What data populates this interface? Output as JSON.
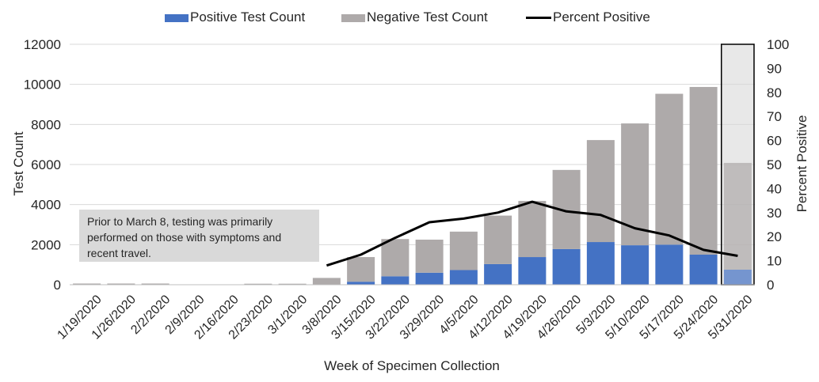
{
  "chart_data": {
    "type": "bar",
    "stacked": true,
    "title": "",
    "xlabel": "Week of Specimen Collection",
    "ylabel": "Test Count",
    "y2label": "Percent Positive",
    "ylim": [
      0,
      12000
    ],
    "y2lim": [
      0,
      100
    ],
    "yticks": [
      "0",
      "2000",
      "4000",
      "6000",
      "8000",
      "10000",
      "12000"
    ],
    "y2ticks": [
      "0",
      "10",
      "20",
      "30",
      "40",
      "50",
      "60",
      "70",
      "80",
      "90",
      "100"
    ],
    "categories": [
      "1/19/2020",
      "1/26/2020",
      "2/2/2020",
      "2/9/2020",
      "2/16/2020",
      "2/23/2020",
      "3/1/2020",
      "3/8/2020",
      "3/15/2020",
      "3/22/2020",
      "3/29/2020",
      "4/5/2020",
      "4/12/2020",
      "4/19/2020",
      "4/26/2020",
      "5/3/2020",
      "5/10/2020",
      "5/17/2020",
      "5/24/2020",
      "5/31/2020"
    ],
    "series": [
      {
        "name": "Positive Test Count",
        "color": "#4472c4",
        "values": [
          0,
          0,
          0,
          0,
          0,
          0,
          0,
          0,
          150,
          420,
          600,
          730,
          1030,
          1380,
          1780,
          2130,
          1970,
          2000,
          1500,
          750
        ]
      },
      {
        "name": "Negative Test Count",
        "color": "#aeaaaa",
        "values": [
          60,
          60,
          60,
          0,
          0,
          50,
          50,
          340,
          1230,
          1860,
          1650,
          1920,
          2420,
          2800,
          3950,
          5090,
          6080,
          7530,
          8370,
          5330
        ]
      },
      {
        "name": "Percent Positive",
        "color": "#000000",
        "axis": "right",
        "values": [
          null,
          null,
          null,
          null,
          null,
          null,
          null,
          8,
          12.5,
          19.5,
          26,
          27.5,
          30,
          34.5,
          30.5,
          29,
          23.5,
          20.5,
          14.5,
          12
        ]
      }
    ],
    "highlight": {
      "category": "5/31/2020",
      "color": "#d9d9d9"
    },
    "annotation": "Prior to March 8, testing was primarily performed on those with symptoms and recent travel.",
    "legend_position": "top-center"
  }
}
